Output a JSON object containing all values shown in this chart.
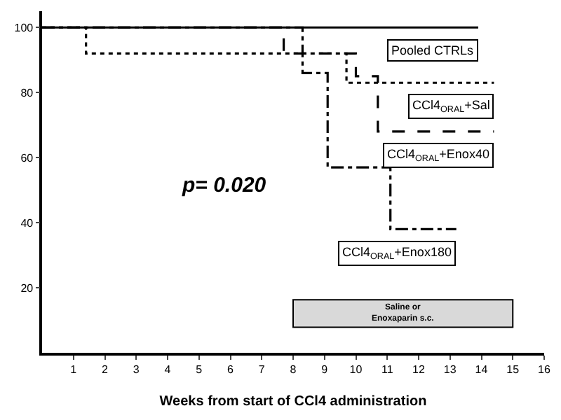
{
  "chart_data": {
    "type": "step",
    "xlabel": "Weeks from start of CCl4 administration",
    "xlim": [
      0,
      16
    ],
    "xticks": [
      1,
      2,
      3,
      4,
      5,
      6,
      7,
      8,
      9,
      10,
      11,
      12,
      13,
      14,
      15,
      16
    ],
    "ylim": [
      0,
      105
    ],
    "yticks": [
      20,
      40,
      60,
      80,
      100
    ],
    "grid": false,
    "legend": false,
    "marker": "none",
    "series": [
      {
        "name": "Pooled CTRLs",
        "color": "#000000",
        "line_style": "solid",
        "x": [
          0,
          13.9
        ],
        "values": [
          100,
          100
        ]
      },
      {
        "name": "CCl4$_{ORAL}$+Sal",
        "color": "#000000",
        "line_style": "dotted",
        "x": [
          0,
          1.4,
          9.7,
          14.4
        ],
        "values": [
          100,
          92,
          83,
          83
        ]
      },
      {
        "name": "CCl4$_{ORAL}$+Enox40",
        "color": "#000000",
        "line_style": "dashed",
        "x": [
          0,
          7.7,
          10.0,
          10.7,
          14.4
        ],
        "values": [
          100,
          92,
          85,
          68,
          68
        ]
      },
      {
        "name": "CCl4$_{ORAL}$+Enox180",
        "color": "#000000",
        "line_style": "dashdot",
        "x": [
          0,
          8.3,
          9.1,
          11.1,
          13.2
        ],
        "values": [
          100,
          86,
          57,
          38,
          38
        ]
      }
    ],
    "bands": [
      {
        "axis": "x",
        "from": 8,
        "to": 15,
        "label": "Saline or\nEnoxaparin s.c.",
        "color": "#d9d9d9"
      }
    ],
    "annotations": [
      "p= 0.020"
    ]
  }
}
